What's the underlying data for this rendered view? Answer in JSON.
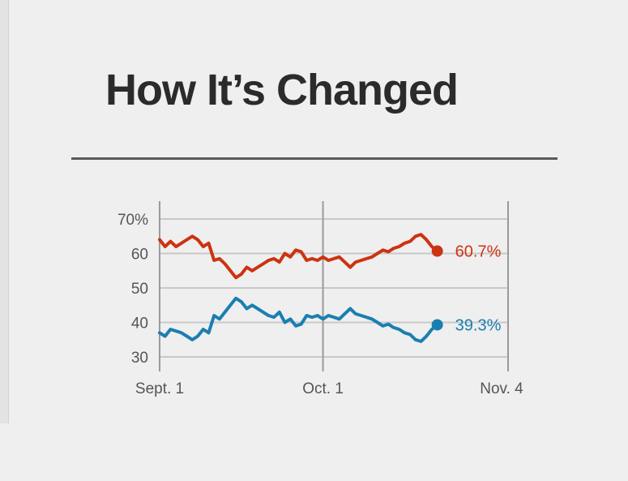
{
  "chart_data": {
    "type": "line",
    "title": "How It’s Changed",
    "x_ticks": [
      "Sept. 1",
      "Oct. 1",
      "Nov. 4"
    ],
    "x_range_days": [
      0,
      64
    ],
    "y_ticks": [
      "70%",
      "60",
      "50",
      "40",
      "30"
    ],
    "y_tick_values": [
      70,
      60,
      50,
      40,
      30
    ],
    "ylim": [
      30,
      70
    ],
    "grid": true,
    "series": [
      {
        "color": "#cc3311",
        "end_label": "60.7%",
        "points": [
          [
            0,
            64
          ],
          [
            1,
            62
          ],
          [
            2,
            63.5
          ],
          [
            3,
            62
          ],
          [
            4,
            63
          ],
          [
            5,
            64
          ],
          [
            6,
            65
          ],
          [
            7,
            64
          ],
          [
            8,
            62
          ],
          [
            9,
            63
          ],
          [
            10,
            58
          ],
          [
            11,
            58.5
          ],
          [
            12,
            57
          ],
          [
            13,
            55
          ],
          [
            14,
            53
          ],
          [
            15,
            54
          ],
          [
            16,
            56
          ],
          [
            17,
            55
          ],
          [
            18,
            56
          ],
          [
            19,
            57
          ],
          [
            20,
            58
          ],
          [
            21,
            58.5
          ],
          [
            22,
            57.5
          ],
          [
            23,
            60
          ],
          [
            24,
            59
          ],
          [
            25,
            61
          ],
          [
            26,
            60.5
          ],
          [
            27,
            58
          ],
          [
            28,
            58.5
          ],
          [
            29,
            58
          ],
          [
            30,
            59
          ],
          [
            31,
            58
          ],
          [
            32,
            58.5
          ],
          [
            33,
            59
          ],
          [
            34,
            57.5
          ],
          [
            35,
            56
          ],
          [
            36,
            57.5
          ],
          [
            37,
            58
          ],
          [
            38,
            58.5
          ],
          [
            39,
            59
          ],
          [
            40,
            60
          ],
          [
            41,
            61
          ],
          [
            42,
            60.5
          ],
          [
            43,
            61.5
          ],
          [
            44,
            62
          ],
          [
            45,
            63
          ],
          [
            46,
            63.5
          ],
          [
            47,
            65
          ],
          [
            48,
            65.5
          ],
          [
            49,
            64
          ],
          [
            50,
            62
          ],
          [
            51,
            60.7
          ]
        ]
      },
      {
        "color": "#1a7fb0",
        "end_label": "39.3%",
        "points": [
          [
            0,
            37
          ],
          [
            1,
            36
          ],
          [
            2,
            38
          ],
          [
            3,
            37.5
          ],
          [
            4,
            37
          ],
          [
            5,
            36
          ],
          [
            6,
            35
          ],
          [
            7,
            36
          ],
          [
            8,
            38
          ],
          [
            9,
            37
          ],
          [
            10,
            42
          ],
          [
            11,
            41
          ],
          [
            12,
            43
          ],
          [
            13,
            45
          ],
          [
            14,
            47
          ],
          [
            15,
            46
          ],
          [
            16,
            44
          ],
          [
            17,
            45
          ],
          [
            18,
            44
          ],
          [
            19,
            43
          ],
          [
            20,
            42
          ],
          [
            21,
            41.5
          ],
          [
            22,
            43
          ],
          [
            23,
            40
          ],
          [
            24,
            41
          ],
          [
            25,
            39
          ],
          [
            26,
            39.5
          ],
          [
            27,
            42
          ],
          [
            28,
            41.5
          ],
          [
            29,
            42
          ],
          [
            30,
            41
          ],
          [
            31,
            42
          ],
          [
            32,
            41.5
          ],
          [
            33,
            41
          ],
          [
            34,
            42.5
          ],
          [
            35,
            44
          ],
          [
            36,
            42.5
          ],
          [
            37,
            42
          ],
          [
            38,
            41.5
          ],
          [
            39,
            41
          ],
          [
            40,
            40
          ],
          [
            41,
            39
          ],
          [
            42,
            39.5
          ],
          [
            43,
            38.5
          ],
          [
            44,
            38
          ],
          [
            45,
            37
          ],
          [
            46,
            36.5
          ],
          [
            47,
            35
          ],
          [
            48,
            34.5
          ],
          [
            49,
            36
          ],
          [
            50,
            38
          ],
          [
            51,
            39.3
          ]
        ]
      }
    ]
  }
}
